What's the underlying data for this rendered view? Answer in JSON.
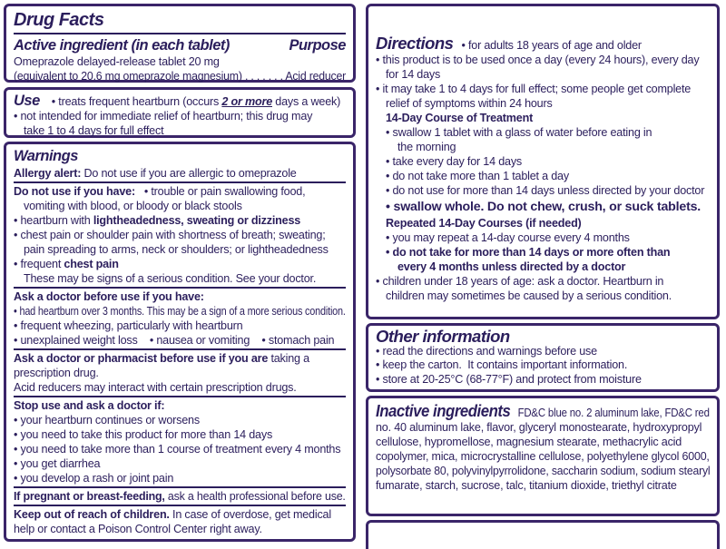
{
  "colors": {
    "ink": "#2b1e5c",
    "border": "#3a2569"
  },
  "left": {
    "drug_facts_title": "Drug Facts",
    "active_ingredient": {
      "heading": "Active ingredient (in each tablet)",
      "purpose_heading": "Purpose",
      "lines": [
        {
          "segs": [
            {
              "t": "Omeprazole delayed-release tablet 20 mg"
            }
          ]
        },
        {
          "segs": [
            {
              "t": "(equivalent to 20.6 mg omeprazole magnesium)"
            },
            {
              "t": " . . . . . . . "
            },
            {
              "t": "Acid reducer"
            }
          ]
        }
      ]
    },
    "use": {
      "lines": [
        {
          "segs": [
            {
              "t": "Use",
              "h": 1
            },
            {
              "t": "• treats frequent heartburn (occurs "
            },
            {
              "t": "2 or more",
              "b": true,
              "i": true,
              "u": true
            },
            {
              "t": " days a week)"
            }
          ]
        },
        {
          "segs": [
            {
              "t": "• not intended for immediate relief of heartburn; this drug may"
            }
          ]
        },
        {
          "ind": 1,
          "segs": [
            {
              "t": "take 1 to 4 days for full effect"
            }
          ]
        }
      ]
    },
    "warnings": {
      "heading": "Warnings",
      "groups": [
        [
          {
            "segs": [
              {
                "t": "Allergy alert:",
                "b": true
              },
              {
                "t": " Do not use if you are allergic to omeprazole"
              }
            ]
          }
        ],
        [
          {
            "segs": [
              {
                "t": "Do not use if you have:",
                "b": true
              },
              {
                "t": "   • trouble or pain swallowing food,"
              }
            ]
          },
          {
            "ind": 1,
            "segs": [
              {
                "t": "vomiting with blood, or bloody or black stools"
              }
            ]
          },
          {
            "segs": [
              {
                "t": "• heartburn with "
              },
              {
                "t": "lightheadedness, sweating or dizziness",
                "b": true
              }
            ]
          },
          {
            "segs": [
              {
                "t": "• chest pain or shoulder pain with shortness of breath; sweating;"
              }
            ]
          },
          {
            "ind": 1,
            "segs": [
              {
                "t": "pain spreading to arms, neck or shoulders; or lightheadedness"
              }
            ]
          },
          {
            "segs": [
              {
                "t": "• frequent "
              },
              {
                "t": "chest pain",
                "b": true
              }
            ]
          },
          {
            "ind": 1,
            "segs": [
              {
                "t": "These may be signs of a serious condition. See your doctor."
              }
            ]
          }
        ],
        [
          {
            "segs": [
              {
                "t": "Ask a doctor before use if you have:",
                "b": true
              }
            ]
          },
          {
            "segs": [
              {
                "t": "• had heartburn over 3 months. This may be a sign of a more serious condition."
              }
            ]
          },
          {
            "segs": [
              {
                "t": "• frequent wheezing, particularly with heartburn"
              }
            ]
          },
          {
            "segs": [
              {
                "t": "• unexplained weight loss    • nausea or vomiting    • stomach pain"
              }
            ]
          }
        ],
        [
          {
            "segs": [
              {
                "t": "Ask a doctor or pharmacist before use if you are",
                "b": true
              },
              {
                "t": " taking a"
              }
            ]
          },
          {
            "segs": [
              {
                "t": "prescription drug."
              }
            ]
          },
          {
            "segs": [
              {
                "t": "Acid reducers may interact with certain prescription drugs."
              }
            ]
          }
        ],
        [
          {
            "segs": [
              {
                "t": "Stop use and ask a doctor if:",
                "b": true
              }
            ]
          },
          {
            "segs": [
              {
                "t": "• your heartburn continues or worsens"
              }
            ]
          },
          {
            "segs": [
              {
                "t": "• you need to take this product for more than 14 days"
              }
            ]
          },
          {
            "segs": [
              {
                "t": "• you need to take more than 1 course of treatment every 4 months"
              }
            ]
          },
          {
            "segs": [
              {
                "t": "• you get diarrhea"
              }
            ]
          },
          {
            "segs": [
              {
                "t": "• you develop a rash or joint pain"
              }
            ]
          }
        ],
        [
          {
            "segs": [
              {
                "t": "If pregnant or breast-feeding,",
                "b": true
              },
              {
                "t": " ask a health professional before use."
              }
            ]
          }
        ],
        [
          {
            "segs": [
              {
                "t": "Keep out of reach of children.",
                "b": true
              },
              {
                "t": " In case of overdose, get medical"
              }
            ]
          },
          {
            "segs": [
              {
                "t": "help or contact a Poison Control Center right away."
              }
            ]
          }
        ]
      ]
    }
  },
  "right": {
    "directions": {
      "lines": [
        {
          "segs": [
            {
              "t": "Directions",
              "h": 2
            },
            {
              "t": "• for adults 18 years of age and older"
            }
          ]
        },
        {
          "segs": [
            {
              "t": "• this product is to be used once a day (every 24 hours), every day"
            }
          ]
        },
        {
          "ind": 1,
          "segs": [
            {
              "t": "for 14 days"
            }
          ]
        },
        {
          "segs": [
            {
              "t": "• it may take 1 to 4 days for full effect; some people get complete"
            }
          ]
        },
        {
          "ind": 1,
          "segs": [
            {
              "t": "relief of symptoms within 24 hours"
            }
          ]
        },
        {
          "ind": 1,
          "segs": [
            {
              "t": "14-Day Course of Treatment",
              "b": true
            }
          ]
        },
        {
          "ind": 1,
          "segs": [
            {
              "t": "• swallow 1 tablet with a glass of water before eating in"
            }
          ]
        },
        {
          "ind": 2,
          "segs": [
            {
              "t": "the morning"
            }
          ]
        },
        {
          "ind": 1,
          "segs": [
            {
              "t": "• take every day for 14 days"
            }
          ]
        },
        {
          "ind": 1,
          "segs": [
            {
              "t": "• do not take more than 1 tablet a day"
            }
          ]
        },
        {
          "ind": 1,
          "segs": [
            {
              "t": "• do not use for more than 14 days unless directed by your doctor"
            }
          ]
        },
        {
          "ind": 1,
          "lg": true,
          "segs": [
            {
              "t": "• swallow whole. Do not chew, crush, or suck tablets.",
              "b": true
            }
          ]
        },
        {
          "ind": 1,
          "segs": [
            {
              "t": "Repeated 14-Day Courses (if needed)",
              "b": true
            }
          ]
        },
        {
          "ind": 1,
          "segs": [
            {
              "t": "• you may repeat a 14-day course every 4 months"
            }
          ]
        },
        {
          "ind": 1,
          "segs": [
            {
              "t": "• do not take for more than 14 days or more often than",
              "b": true
            }
          ]
        },
        {
          "ind": 2,
          "segs": [
            {
              "t": "every 4 months unless directed by a doctor",
              "b": true
            }
          ]
        },
        {
          "segs": [
            {
              "t": "• children under 18 years of age: ask a doctor. Heartburn in"
            }
          ]
        },
        {
          "ind": 1,
          "segs": [
            {
              "t": "children may sometimes be caused by a serious condition."
            }
          ]
        }
      ]
    },
    "other_information": {
      "heading": "Other information",
      "lines": [
        {
          "segs": [
            {
              "t": "• read the directions and warnings before use"
            }
          ]
        },
        {
          "segs": [
            {
              "t": "• keep the carton.  It contains important information."
            }
          ]
        },
        {
          "segs": [
            {
              "t": "• store at 20-25°C (68-77°F) and protect from moisture"
            }
          ]
        }
      ]
    },
    "inactive_ingredients": {
      "lines": [
        {
          "segs": [
            {
              "t": "Inactive ingredients",
              "h": 2
            },
            {
              "t": "FD&C blue no. 2 aluminum lake, FD&C red"
            }
          ]
        },
        {
          "segs": [
            {
              "t": "no. 40 aluminum lake, flavor, glyceryl monostearate, hydroxypropyl"
            }
          ]
        },
        {
          "segs": [
            {
              "t": "cellulose, hypromellose, magnesium stearate, methacrylic acid"
            }
          ]
        },
        {
          "segs": [
            {
              "t": "copolymer, mica, microcrystalline cellulose, polyethylene glycol 6000,"
            }
          ]
        },
        {
          "segs": [
            {
              "t": "polysorbate 80, polyvinylpyrrolidone, saccharin sodium, sodium stearyl"
            }
          ]
        },
        {
          "segs": [
            {
              "t": "fumarate, starch, sucrose, talc, titanium dioxide, triethyl citrate"
            }
          ]
        }
      ]
    }
  }
}
